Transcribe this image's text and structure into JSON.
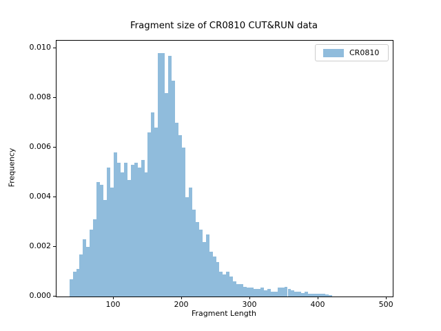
{
  "figure": {
    "title": "Fragment size of CR0810 CUT&RUN data",
    "xlabel": "Fragment Length",
    "ylabel": "Frequency"
  },
  "legend": {
    "label": "CR0810",
    "position": "upper right"
  },
  "colors": {
    "bar": "#90bcdc",
    "spine": "#000000",
    "text": "#000000",
    "legend_border": "#cccccc",
    "background": "#ffffff"
  },
  "chart_data": {
    "type": "bar",
    "subtype": "histogram",
    "title": "Fragment size of CR0810 CUT&RUN data",
    "xlabel": "Fragment Length",
    "ylabel": "Frequency",
    "legend_entries": [
      "CR0810"
    ],
    "legend_position": "upper right",
    "grid": false,
    "xlim": [
      16.2,
      509
    ],
    "ylim": [
      0,
      0.0103
    ],
    "x_ticks": [
      100,
      200,
      300,
      400,
      500
    ],
    "x_tick_labels": [
      "100",
      "200",
      "300",
      "400",
      "500"
    ],
    "y_ticks": [
      0.0,
      0.002,
      0.004,
      0.006,
      0.008,
      0.01
    ],
    "y_tick_labels": [
      "0.000",
      "0.002",
      "0.004",
      "0.006",
      "0.008",
      "0.010"
    ],
    "bin_start": 35,
    "bin_width": 5,
    "frequencies": [
      0.0007,
      0.001,
      0.0011,
      0.0017,
      0.0023,
      0.002,
      0.0027,
      0.0031,
      0.0046,
      0.0045,
      0.0039,
      0.0052,
      0.0044,
      0.0058,
      0.0054,
      0.005,
      0.0054,
      0.0047,
      0.0053,
      0.0054,
      0.0052,
      0.0055,
      0.005,
      0.0066,
      0.0074,
      0.0068,
      0.0098,
      0.0098,
      0.0082,
      0.0097,
      0.0087,
      0.007,
      0.0065,
      0.006,
      0.004,
      0.0044,
      0.0035,
      0.003,
      0.0027,
      0.0022,
      0.0025,
      0.0018,
      0.0016,
      0.0014,
      0.001,
      0.0009,
      0.001,
      0.0008,
      0.0006,
      0.0005,
      0.0005,
      0.0004,
      0.00035,
      0.00035,
      0.0003,
      0.0003,
      0.00035,
      0.00025,
      0.0003,
      0.0002,
      0.0002,
      0.00035,
      0.00035,
      0.0004,
      0.0003,
      0.00025,
      0.0002,
      0.0002,
      0.00015,
      0.0002,
      0.0001,
      0.0001,
      0.00012,
      0.0001,
      0.0001,
      8e-05,
      5e-05
    ]
  }
}
